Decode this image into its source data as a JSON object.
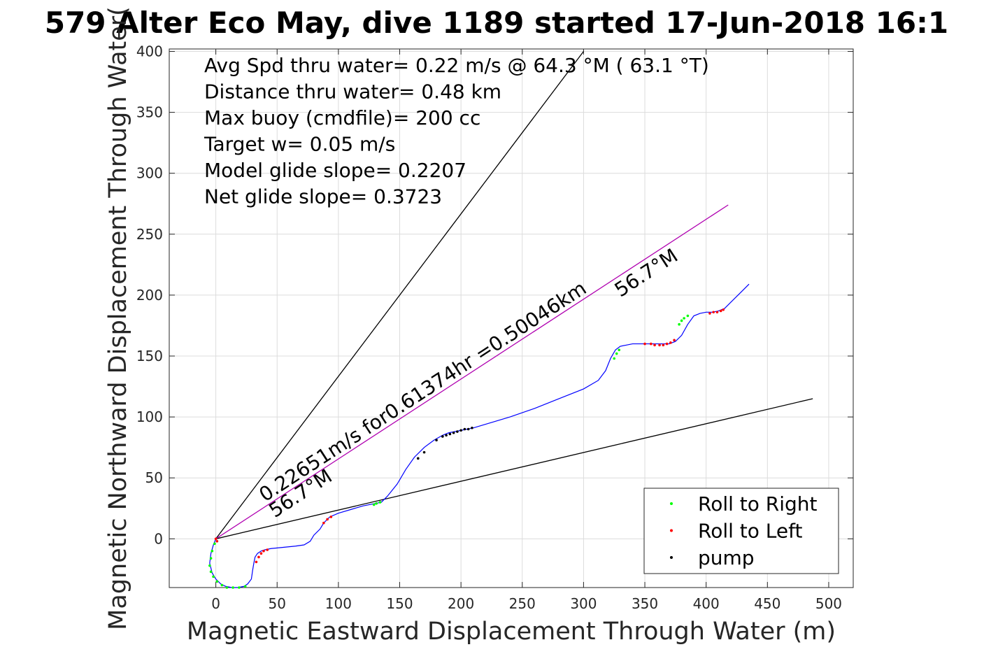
{
  "chart_data": {
    "type": "line",
    "title": "579 Alter Eco May, dive 1189 started 17-Jun-2018 16:1",
    "xlabel": "Magnetic Eastward Displacement Through Water (m)",
    "ylabel": "Magnetic Northward Displacement Through Water(",
    "xlim": [
      -38,
      520
    ],
    "ylim": [
      -40,
      402
    ],
    "xticks": [
      0,
      50,
      100,
      150,
      200,
      250,
      300,
      350,
      400,
      450,
      500
    ],
    "yticks": [
      0,
      50,
      100,
      150,
      200,
      250,
      300,
      350,
      400
    ],
    "grid": true,
    "legend_position": "bottom-right",
    "annotations_text": [
      "Avg Spd thru water=  0.22 m/s @  64.3 °M ( 63.1 °T)",
      "Distance thru water=  0.48 km",
      "Max buoy (cmdfile)= 200 cc",
      "Target w= 0.05 m/s",
      "Model glide slope= 0.2207",
      "Net glide slope= 0.3723"
    ],
    "line_labels": [
      {
        "text": "0.22651m/s for0.61374hr =0.50046km",
        "x": 40,
        "y": 30
      },
      {
        "text": "56.7°M",
        "x": 48,
        "y": 17
      },
      {
        "text": "56.7°M",
        "x": 330,
        "y": 198
      }
    ],
    "reference_lines": [
      {
        "name": "upper-bound-line",
        "color": "#000000",
        "x": [
          0,
          300
        ],
        "y": [
          0,
          400
        ]
      },
      {
        "name": "lower-bound-line",
        "color": "#000000",
        "x": [
          0,
          487
        ],
        "y": [
          0,
          115
        ]
      },
      {
        "name": "heading-line",
        "color": "#b000b0",
        "x": [
          0,
          418
        ],
        "y": [
          0,
          274
        ]
      }
    ],
    "series": [
      {
        "name": "track",
        "color": "#0000ff",
        "x": [
          0,
          -2,
          -4,
          -5,
          -3,
          0,
          4,
          8,
          13,
          18,
          23,
          26,
          29,
          30,
          31,
          32,
          34,
          37,
          40,
          45,
          55,
          65,
          72,
          77,
          80,
          85,
          88,
          93,
          100,
          110,
          120,
          130,
          135,
          140,
          148,
          155,
          162,
          170,
          178,
          185,
          190,
          195,
          200,
          210,
          220,
          240,
          260,
          280,
          300,
          312,
          318,
          322,
          326,
          330,
          335,
          340,
          350,
          360,
          370,
          375,
          380,
          385,
          390,
          395,
          400,
          405,
          410,
          415,
          420,
          428,
          435
        ],
        "y": [
          0,
          -5,
          -12,
          -20,
          -28,
          -33,
          -37,
          -39,
          -40,
          -40,
          -39,
          -37,
          -33,
          -26,
          -20,
          -15,
          -12,
          -10,
          -9,
          -8,
          -7,
          -6,
          -5,
          -2,
          3,
          8,
          13,
          18,
          21,
          24,
          27,
          29,
          30,
          35,
          45,
          57,
          67,
          75,
          81,
          85,
          87,
          88,
          89,
          91,
          94,
          100,
          107,
          115,
          123,
          130,
          138,
          148,
          155,
          158,
          159,
          160,
          160,
          160,
          160,
          162,
          167,
          176,
          183,
          185,
          186,
          186,
          187,
          189,
          194,
          202,
          209
        ]
      }
    ],
    "scatter": {
      "roll_right": {
        "x": [
          -1,
          -3,
          -4,
          -5,
          -4,
          -2,
          1,
          5,
          9,
          14,
          19,
          24,
          129,
          131,
          134,
          325,
          327,
          329,
          378,
          380,
          382,
          385
        ],
        "y": [
          -4,
          -10,
          -16,
          -22,
          -27,
          -31,
          -35,
          -38,
          -40,
          -40,
          -40,
          -39,
          28,
          29,
          30,
          148,
          152,
          155,
          176,
          179,
          181,
          183
        ]
      },
      "roll_left": {
        "x": [
          0,
          1,
          33,
          35,
          37,
          39,
          42,
          88,
          91,
          94,
          350,
          355,
          358,
          362,
          365,
          368,
          371,
          374,
          403,
          406,
          409,
          412,
          414
        ],
        "y": [
          0,
          -2,
          -19,
          -15,
          -12,
          -10,
          -9,
          13,
          16,
          18,
          160,
          160,
          159,
          159,
          159,
          160,
          161,
          163,
          185,
          186,
          186,
          187,
          188
        ]
      },
      "pump": {
        "x": [
          165,
          170,
          180,
          185,
          188,
          191,
          194,
          197,
          200,
          203,
          206,
          209
        ],
        "y": [
          66,
          71,
          81,
          84,
          85,
          86,
          87,
          88,
          89,
          90,
          90,
          91
        ]
      }
    },
    "legend": [
      {
        "label": "Roll to Right",
        "color": "#00ff00"
      },
      {
        "label": "Roll to Left",
        "color": "#ff0000"
      },
      {
        "label": "pump",
        "color": "#000000"
      }
    ]
  }
}
